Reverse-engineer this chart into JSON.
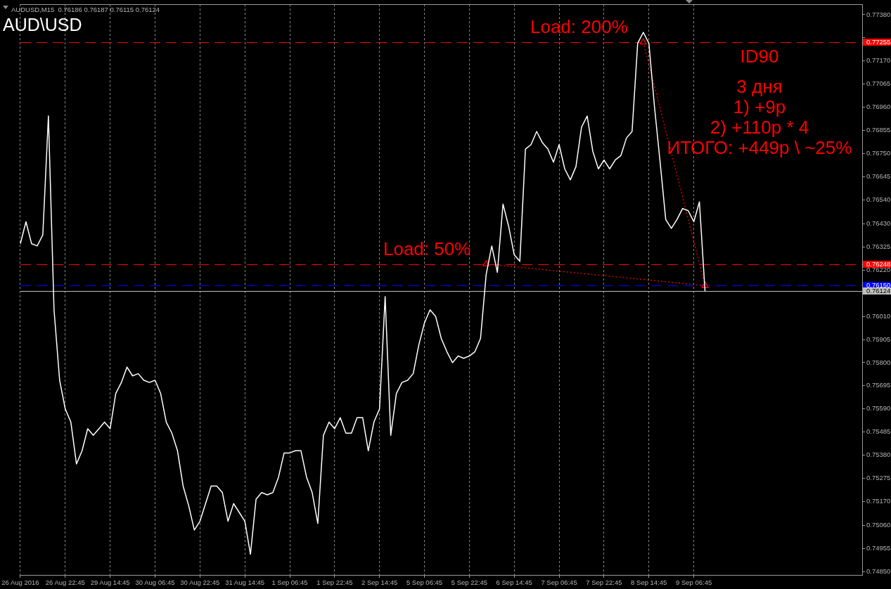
{
  "chart_data": {
    "type": "line",
    "title": "AUD\\USD",
    "subtitle": "AUDUSD,M15  0.76186 0.76187 0.76115 0.76124",
    "categories": [
      "26 Aug 2016",
      null,
      null,
      null,
      null,
      null,
      null,
      null,
      "26 Aug 22:45",
      null,
      null,
      null,
      null,
      null,
      null,
      null,
      "29 Aug 14:45",
      null,
      null,
      null,
      null,
      null,
      null,
      null,
      "30 Aug 06:45",
      null,
      null,
      null,
      null,
      null,
      null,
      null,
      "30 Aug 22:45",
      null,
      null,
      null,
      null,
      null,
      null,
      null,
      "31 Aug 14:45",
      null,
      null,
      null,
      null,
      null,
      null,
      null,
      "1 Sep 06:45",
      null,
      null,
      null,
      null,
      null,
      null,
      null,
      "1 Sep 22:45",
      null,
      null,
      null,
      null,
      null,
      null,
      null,
      "2 Sep 14:45",
      null,
      null,
      null,
      null,
      null,
      null,
      null,
      "5 Sep 06:45",
      null,
      null,
      null,
      null,
      null,
      null,
      null,
      "5 Sep 22:45",
      null,
      null,
      null,
      null,
      null,
      null,
      null,
      "6 Sep 14:45",
      null,
      null,
      null,
      null,
      null,
      null,
      null,
      "7 Sep 06:45",
      null,
      null,
      null,
      null,
      null,
      null,
      null,
      "7 Sep 22:45",
      null,
      null,
      null,
      null,
      null,
      null,
      null,
      "8 Sep 14:45",
      null,
      null,
      null,
      null,
      null,
      null,
      null,
      "9 Sep 06:45",
      null,
      null,
      null,
      null,
      null,
      null,
      null,
      null,
      null,
      null,
      null,
      null,
      null,
      null,
      null,
      null,
      null,
      null,
      null,
      null,
      null,
      null,
      null,
      null,
      null,
      null,
      null,
      null,
      null,
      null
    ],
    "series": [
      {
        "color": "#ffffff",
        "marker": "none",
        "line_style": "solid",
        "values": [
          0.7634,
          0.7644,
          0.7634,
          0.7633,
          0.7638,
          0.7692,
          0.7604,
          0.7572,
          0.7559,
          0.7553,
          0.7534,
          0.754,
          0.755,
          0.7547,
          0.755,
          0.7553,
          0.755,
          0.7566,
          0.7571,
          0.7578,
          0.7574,
          0.7575,
          0.7572,
          0.7571,
          0.7572,
          0.7566,
          0.7553,
          0.7548,
          0.754,
          0.7524,
          0.7515,
          0.7504,
          0.7508,
          0.7516,
          0.7524,
          0.7524,
          0.7521,
          0.7508,
          0.7516,
          0.7512,
          0.7508,
          0.7493,
          0.7518,
          0.7521,
          0.752,
          0.7521,
          0.7528,
          0.7539,
          0.7539,
          0.754,
          0.754,
          0.7528,
          0.7521,
          0.7507,
          0.7547,
          0.7553,
          0.755,
          0.7555,
          0.7548,
          0.7548,
          0.7555,
          0.7555,
          0.754,
          0.7553,
          0.7559,
          0.761,
          0.7547,
          0.7566,
          0.7571,
          0.7572,
          0.7575,
          0.7588,
          0.7598,
          0.7604,
          0.7601,
          0.7591,
          0.7585,
          0.758,
          0.7583,
          0.7582,
          0.7583,
          0.7585,
          0.7591,
          0.762,
          0.7633,
          0.7621,
          0.7652,
          0.7642,
          0.7629,
          0.7626,
          0.7677,
          0.7679,
          0.7685,
          0.768,
          0.7677,
          0.7671,
          0.7679,
          0.7668,
          0.7663,
          0.7669,
          0.7687,
          0.7692,
          0.7676,
          0.7668,
          0.7672,
          0.7668,
          0.7672,
          0.7674,
          0.7682,
          0.7685,
          0.7725,
          0.773,
          0.7725,
          0.7696,
          0.7671,
          0.7645,
          0.7641,
          0.7645,
          0.765,
          0.7649,
          0.7644,
          0.7653,
          0.76124,
          null,
          null,
          null,
          null,
          null,
          null,
          null,
          null,
          null,
          null,
          null,
          null,
          null,
          null,
          null,
          null,
          null,
          null,
          null,
          null,
          null,
          null,
          null,
          null,
          null,
          null,
          null,
          null
        ]
      },
      {
        "name": "Load: 50%",
        "color": "#ff0000",
        "marker": "triangle",
        "line_style": "dotted",
        "values": [
          null,
          null,
          null,
          null,
          null,
          null,
          null,
          null,
          null,
          null,
          null,
          null,
          null,
          null,
          null,
          null,
          null,
          null,
          null,
          null,
          null,
          null,
          null,
          null,
          null,
          null,
          null,
          null,
          null,
          null,
          null,
          null,
          null,
          null,
          null,
          null,
          null,
          null,
          null,
          null,
          null,
          null,
          null,
          null,
          null,
          null,
          null,
          null,
          null,
          null,
          null,
          null,
          null,
          null,
          null,
          null,
          null,
          null,
          null,
          null,
          null,
          null,
          null,
          null,
          null,
          null,
          null,
          null,
          null,
          null,
          null,
          null,
          null,
          null,
          null,
          null,
          null,
          null,
          null,
          null,
          null,
          null,
          null,
          0.76248,
          null,
          null,
          null,
          null,
          null,
          null,
          null,
          null,
          null,
          null,
          null,
          null,
          null,
          null,
          null,
          null,
          null,
          null,
          null,
          null,
          null,
          null,
          null,
          null,
          null,
          null,
          null,
          null,
          null,
          null,
          null,
          null,
          null,
          null,
          null,
          null,
          null,
          null,
          0.7615,
          null,
          null,
          null,
          null,
          null,
          null,
          null,
          null,
          null,
          null,
          null,
          null,
          null,
          null,
          null,
          null,
          null,
          null,
          null,
          null,
          null,
          null,
          null,
          null,
          null,
          null,
          null,
          null
        ]
      },
      {
        "name": "Load: 200%",
        "color": "#ff0000",
        "marker": "triangle",
        "line_style": "dotted",
        "values": [
          null,
          null,
          null,
          null,
          null,
          null,
          null,
          null,
          null,
          null,
          null,
          null,
          null,
          null,
          null,
          null,
          null,
          null,
          null,
          null,
          null,
          null,
          null,
          null,
          null,
          null,
          null,
          null,
          null,
          null,
          null,
          null,
          null,
          null,
          null,
          null,
          null,
          null,
          null,
          null,
          null,
          null,
          null,
          null,
          null,
          null,
          null,
          null,
          null,
          null,
          null,
          null,
          null,
          null,
          null,
          null,
          null,
          null,
          null,
          null,
          null,
          null,
          null,
          null,
          null,
          null,
          null,
          null,
          null,
          null,
          null,
          null,
          null,
          null,
          null,
          null,
          null,
          null,
          null,
          null,
          null,
          null,
          null,
          null,
          null,
          null,
          null,
          null,
          null,
          null,
          null,
          null,
          null,
          null,
          null,
          null,
          null,
          null,
          null,
          null,
          null,
          null,
          null,
          null,
          null,
          null,
          null,
          null,
          null,
          null,
          null,
          0.77255,
          null,
          null,
          null,
          null,
          null,
          null,
          null,
          null,
          null,
          null,
          0.7615,
          null,
          null,
          null,
          null,
          null,
          null,
          null,
          null,
          null,
          null,
          null,
          null,
          null,
          null,
          null,
          null,
          null,
          null,
          null,
          null,
          null,
          null,
          null,
          null,
          null,
          null,
          null,
          null
        ]
      }
    ],
    "ylim": [
      0.74836,
      0.77427
    ],
    "yticks": [
      {
        "value": 0.7485,
        "label": "0.74850"
      },
      0.74955,
      {
        "value": 0.7506,
        "label": "0.75060"
      },
      {
        "value": 0.7517,
        "label": "0.75170"
      },
      0.75275,
      {
        "value": 0.7538,
        "label": "0.75380"
      },
      0.75485,
      {
        "value": 0.7559,
        "label": "0.75590"
      },
      0.75695,
      {
        "value": 0.758,
        "label": "0.75800"
      },
      0.75905,
      {
        "value": 0.7601,
        "label": "0.76010"
      },
      {
        "value": 0.7622,
        "label": "0.76220"
      },
      0.76325,
      {
        "value": 0.7643,
        "label": "0.76430"
      },
      {
        "value": 0.7654,
        "label": "0.76540"
      },
      0.76645,
      {
        "value": 0.7675,
        "label": "0.76750"
      },
      0.76855,
      {
        "value": 0.7696,
        "label": "0.76960"
      },
      0.77065,
      {
        "value": 0.7717,
        "label": "0.77170"
      },
      {
        "value": 0.77275,
        "label": null
      },
      {
        "value": 0.7738,
        "label": "0.77380"
      }
    ],
    "ref_lines": [
      {
        "axis": "y",
        "value": 0.77255,
        "label": "0.77255",
        "color": "#ff0000",
        "line_style": "dashed"
      },
      {
        "axis": "y",
        "value": 0.76248,
        "label": "0.76248",
        "color": "#ff0000",
        "line_style": "dashed"
      },
      {
        "axis": "y",
        "value": 0.7615,
        "label": "0.76150",
        "color": "#0000ff",
        "line_style": "dashed"
      },
      {
        "axis": "y",
        "value": 0.76124,
        "label": "0.76124",
        "color": "#c0c0c0",
        "line_style": "solid"
      }
    ],
    "annotations": [
      "ID90",
      "3 дня",
      "1) +9р",
      "2) +110р * 4",
      "ИТОГО: +449р \\ ~25%"
    ],
    "grid": "x",
    "legend": false
  }
}
